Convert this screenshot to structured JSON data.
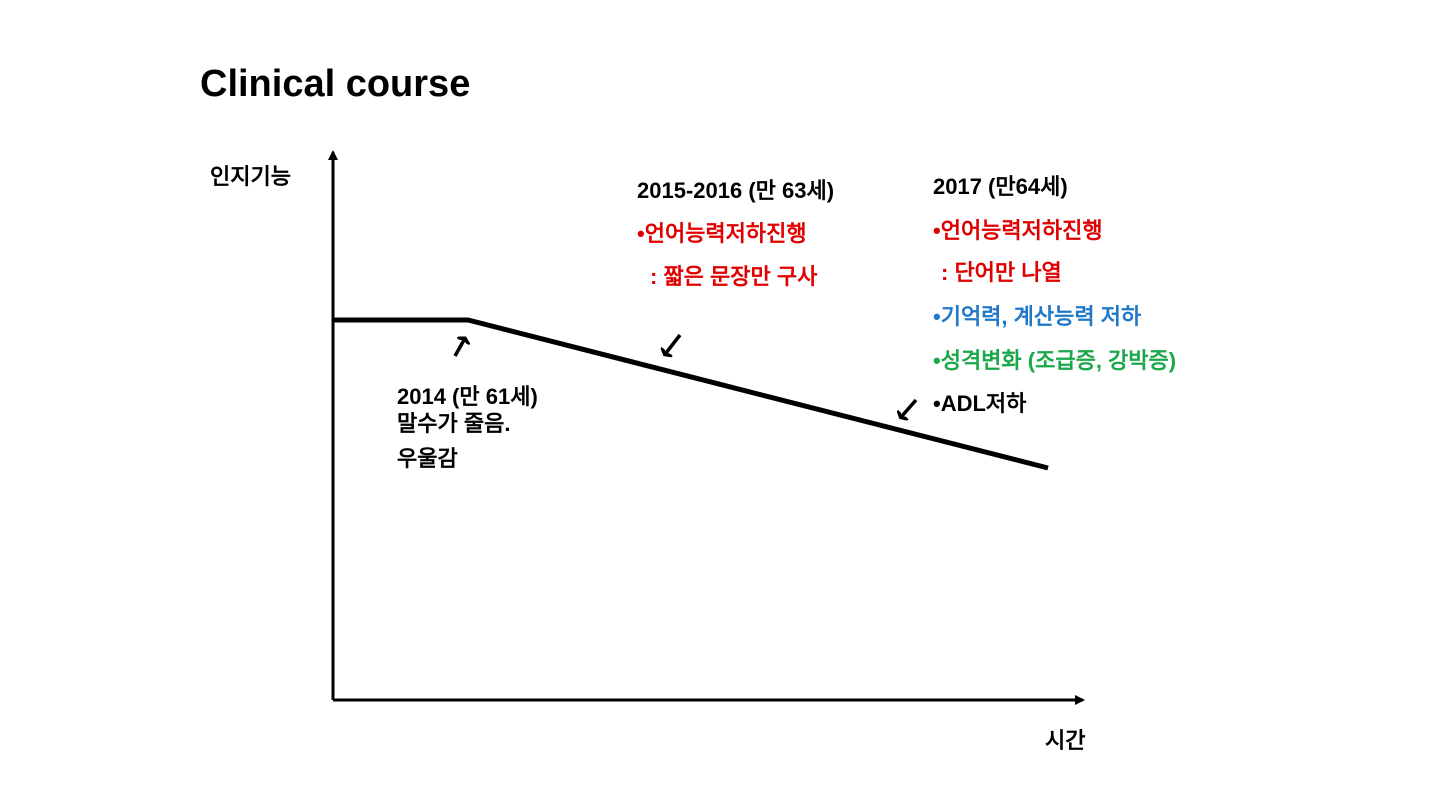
{
  "header": {
    "title": "Clinical course"
  },
  "axes": {
    "y_label": "인지기능",
    "x_label": "시간"
  },
  "annotations": [
    {
      "lines": [
        "2014 (만 61세)",
        "말수가 줄음.",
        "우울감"
      ]
    },
    {
      "lines": [
        "2015-2016 (만 63세)",
        "•언어능력저하진행",
        ": 짧은 문장만 구사"
      ]
    },
    {
      "lines": [
        "2017 (만64세)",
        "•언어능력저하진행",
        ": 단어만 나열",
        "•기억력, 계산능력 저하",
        "•성격변화 (조급증, 강박증)",
        "•ADL저하"
      ]
    }
  ]
}
